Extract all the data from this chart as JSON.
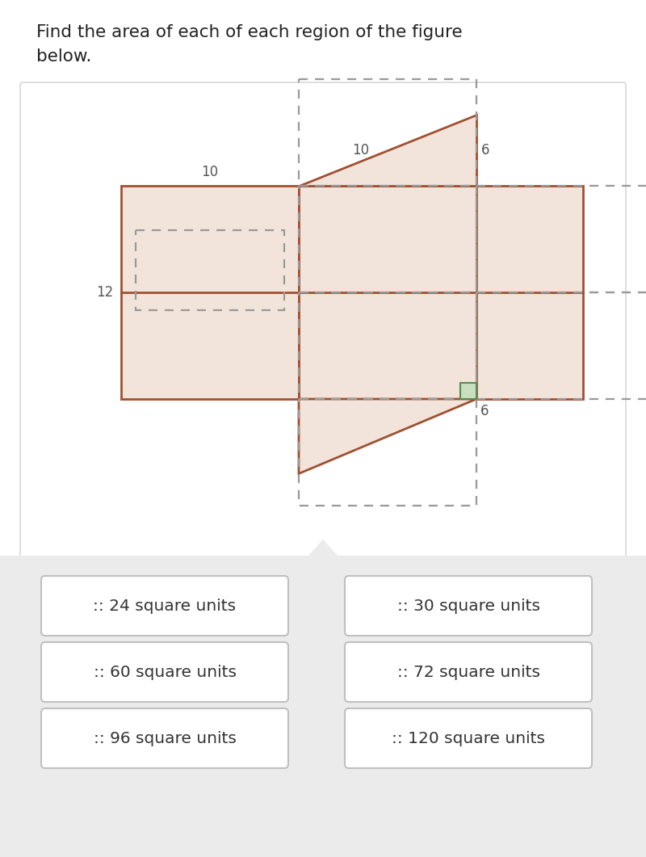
{
  "title_line1": "Find the area of each of each region of the figure",
  "title_line2": "below.",
  "title_fontsize": 15.5,
  "title_color": "#222222",
  "figure_bg": "#ffffff",
  "gray_bg": "#ebebeb",
  "white_card_bg": "#ffffff",
  "white_card_edge": "#d0d0d0",
  "solid_fill": "#f2e4da",
  "solid_edge": "#a05030",
  "dashed_color": "#999999",
  "green_fill": "#c8dfc0",
  "green_edge": "#5a8a52",
  "label_color": "#555555",
  "answer_labels": [
    ":: 24 square units",
    ":: 30 square units",
    ":: 60 square units",
    ":: 72 square units",
    ":: 96 square units",
    ":: 120 square units"
  ],
  "note": "All pixel coords for 800x1061 canvas, y-down"
}
